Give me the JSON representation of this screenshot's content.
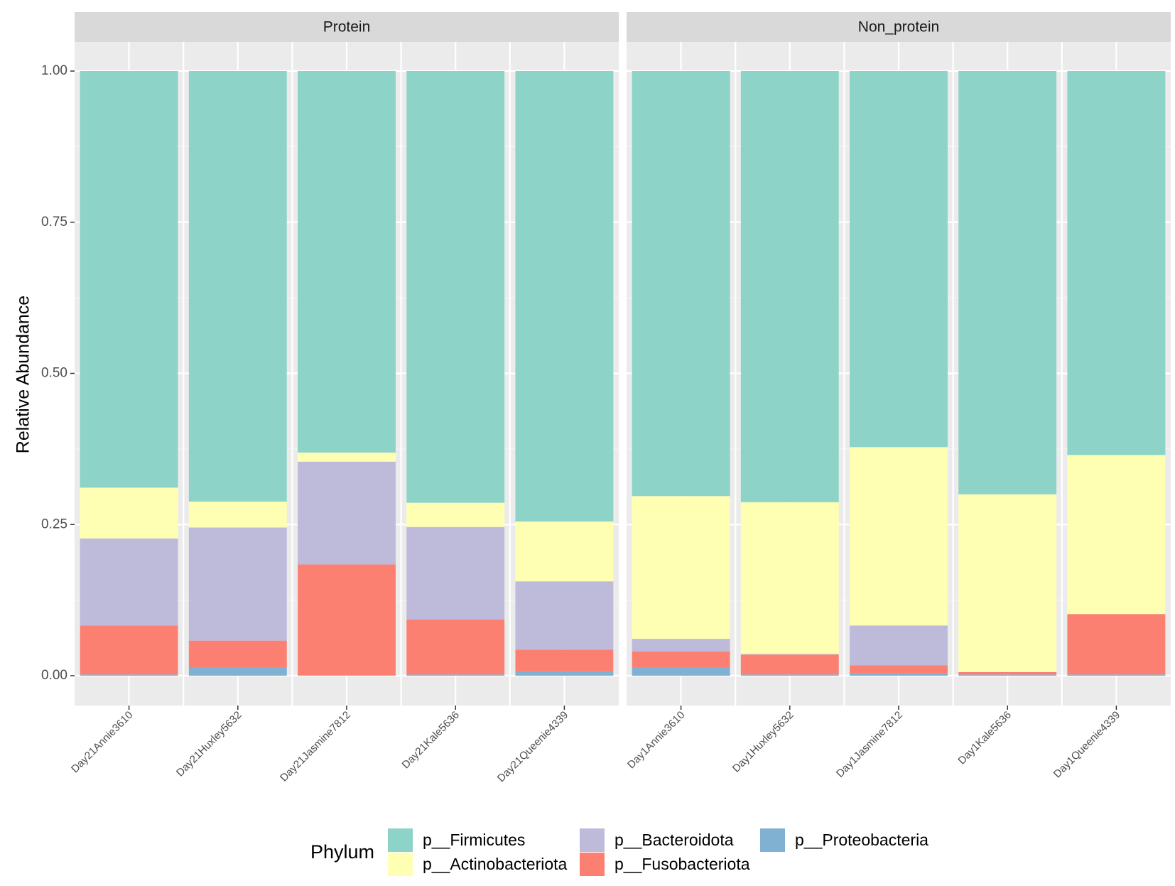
{
  "chart_data": {
    "type": "bar",
    "stacked": true,
    "ylabel": "Relative Abundance",
    "ylim": [
      0,
      1
    ],
    "yticks": [
      "0.00",
      "0.25",
      "0.50",
      "0.75",
      "1.00"
    ],
    "ytick_values": [
      0,
      0.25,
      0.5,
      0.75,
      1.0
    ],
    "legend": {
      "title": "Phylum",
      "position": "bottom",
      "entries": [
        {
          "name": "p__Firmicutes",
          "color": "#8DD3C7"
        },
        {
          "name": "p__Actinobacteriota",
          "color": "#FFFFB3"
        },
        {
          "name": "p__Bacteroidota",
          "color": "#BEBADA"
        },
        {
          "name": "p__Fusobacteriota",
          "color": "#FB8072"
        },
        {
          "name": "p__Proteobacteria",
          "color": "#80B1D3"
        }
      ]
    },
    "stack_order_bottom_to_top": [
      "p__Proteobacteria",
      "p__Fusobacteriota",
      "p__Bacteroidota",
      "p__Actinobacteriota",
      "p__Firmicutes"
    ],
    "panels": [
      {
        "title": "Protein",
        "categories": [
          "Day21Annie3610",
          "Day21Huxley5632",
          "Day21Jasmine7812",
          "Day21Kale5636",
          "Day21Queenie4339"
        ],
        "series": [
          {
            "name": "p__Proteobacteria",
            "values": [
              0.002,
              0.013,
              0.001,
              0.002,
              0.006
            ]
          },
          {
            "name": "p__Fusobacteriota",
            "values": [
              0.081,
              0.045,
              0.183,
              0.091,
              0.037
            ]
          },
          {
            "name": "p__Bacteroidota",
            "values": [
              0.144,
              0.187,
              0.17,
              0.153,
              0.113
            ]
          },
          {
            "name": "p__Actinobacteriota",
            "values": [
              0.084,
              0.043,
              0.015,
              0.04,
              0.099
            ]
          },
          {
            "name": "p__Firmicutes",
            "values": [
              0.689,
              0.712,
              0.631,
              0.714,
              0.745
            ]
          }
        ]
      },
      {
        "title": "Non_protein",
        "categories": [
          "Day1Annie3610",
          "Day1Huxley5632",
          "Day1Jasmine7812",
          "Day1Kale5636",
          "Day1Queenie4339"
        ],
        "series": [
          {
            "name": "p__Proteobacteria",
            "values": [
              0.013,
              0.002,
              0.004,
              0.002,
              0.002
            ]
          },
          {
            "name": "p__Fusobacteriota",
            "values": [
              0.027,
              0.033,
              0.013,
              0.004,
              0.1
            ]
          },
          {
            "name": "p__Bacteroidota",
            "values": [
              0.021,
              0.001,
              0.066,
              0.0,
              0.0
            ]
          },
          {
            "name": "p__Actinobacteriota",
            "values": [
              0.236,
              0.251,
              0.295,
              0.294,
              0.263
            ]
          },
          {
            "name": "p__Firmicutes",
            "values": [
              0.703,
              0.713,
              0.622,
              0.7,
              0.635
            ]
          }
        ]
      }
    ]
  }
}
